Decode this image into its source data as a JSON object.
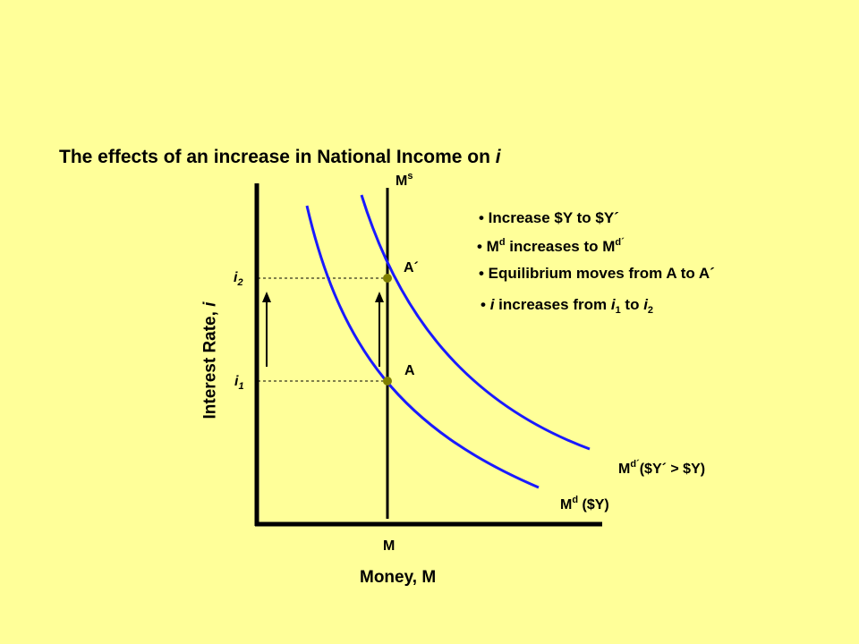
{
  "title": {
    "main": "The effects of an increase in National Income on ",
    "var": "i"
  },
  "axes": {
    "x_label": "Money, M",
    "y_label_main": "Interest Rate, ",
    "y_label_var": "i",
    "x_tick": "M"
  },
  "supply_curve": {
    "base": "M",
    "sup": "s"
  },
  "interest_ticks": [
    {
      "base": "i",
      "sub": "2"
    },
    {
      "base": "i",
      "sub": "1"
    }
  ],
  "points": {
    "a_prime": "A´",
    "a": "A"
  },
  "curve_labels": {
    "shifted": {
      "base": "M",
      "sup": "d´",
      "rest": "($Y´ > $Y)"
    },
    "original": {
      "base": "M",
      "sup": "d",
      "rest": " ($Y)"
    }
  },
  "bullets": {
    "b1": "• Increase $Y to $Y´",
    "b2": {
      "pre": "• M",
      "sup1": "d",
      "mid": " increases to M",
      "sup2": "d´"
    },
    "b3": "• Equilibrium moves from A to A´",
    "b4": {
      "pre": "• ",
      "v1": "i",
      "mid": " increases from ",
      "v2": "i",
      "s1": "1",
      "to": " to ",
      "v3": "i",
      "s2": "2"
    }
  },
  "colors": {
    "background": "#ffff99",
    "demand_curves": "#1a1aff",
    "axes": "#000000",
    "points": "#808000"
  }
}
